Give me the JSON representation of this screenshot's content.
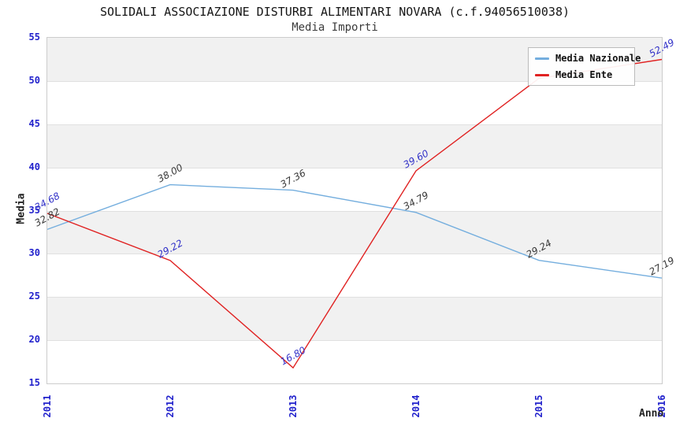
{
  "header": {
    "title": "SOLIDALI ASSOCIAZIONE DISTURBI ALIMENTARI NOVARA (c.f.94056510038)",
    "subtitle": "Media Importi"
  },
  "axes": {
    "y_title": "Media",
    "x_title": "Anno",
    "y_ticks": [
      55,
      50,
      45,
      40,
      35,
      30,
      25,
      20,
      15
    ],
    "x_ticks": [
      "2011",
      "2012",
      "2013",
      "2014",
      "2015",
      "2016"
    ],
    "tick_label_color": "#2222cc",
    "band_color": "#f1f1f1",
    "gridline_color": "#e0e0e0"
  },
  "legend": {
    "items": [
      {
        "label": "Media Nazionale",
        "color": "#74aede"
      },
      {
        "label": "Media Ente",
        "color": "#e02222"
      }
    ]
  },
  "chart_data": {
    "type": "line",
    "title": "SOLIDALI ASSOCIAZIONE DISTURBI ALIMENTARI NOVARA (c.f.94056510038)",
    "subtitle": "Media Importi",
    "xlabel": "Anno",
    "ylabel": "Media",
    "x": [
      2011,
      2012,
      2013,
      2014,
      2015,
      2016
    ],
    "ylim": [
      15,
      55
    ],
    "y_step": 5,
    "grid": "horizontal",
    "legend_position": "top-right",
    "series": [
      {
        "name": "Media Nazionale",
        "color": "#74aede",
        "label_color": "#383838",
        "values": [
          32.82,
          38.0,
          37.36,
          34.79,
          29.24,
          27.19
        ],
        "point_labels": [
          "32.82",
          "38.00",
          "37.36",
          "34.79",
          "29.24",
          "27.19"
        ]
      },
      {
        "name": "Media Ente",
        "color": "#e02222",
        "label_color": "#3232c8",
        "values": [
          34.68,
          29.22,
          16.8,
          39.6,
          50.3,
          52.49
        ],
        "point_labels": [
          "34.68",
          "29.22",
          "16.80",
          "39.60",
          "",
          "52.49"
        ]
      }
    ]
  }
}
